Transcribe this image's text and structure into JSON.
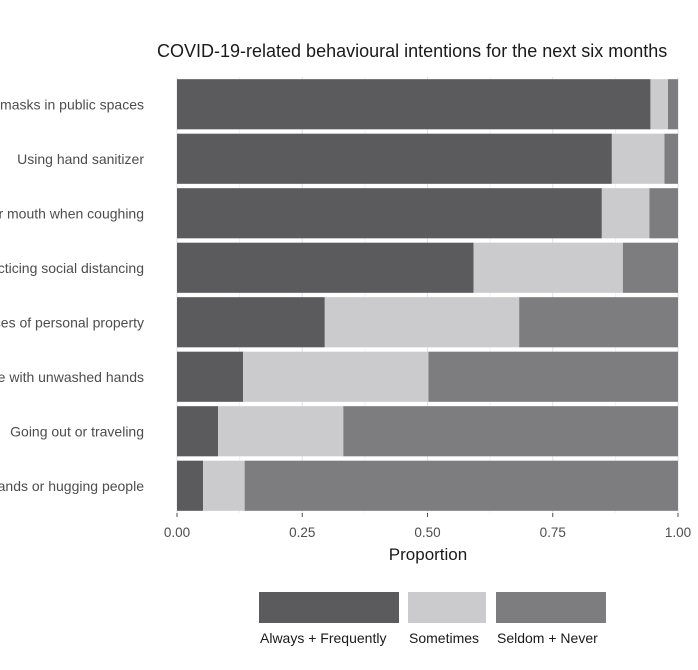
{
  "chart_data": {
    "type": "bar",
    "orientation": "horizontal",
    "stacked": true,
    "title": "COVID-19-related behavioural intentions for the next six months",
    "xlabel": "Proportion",
    "ylabel": "",
    "xlim": [
      0,
      1
    ],
    "x_ticks": [
      "0.00",
      "0.25",
      "0.50",
      "0.75",
      "1.00"
    ],
    "grid": true,
    "legend_position": "bottom",
    "categories": [
      "Wearing face masks in public spaces",
      "Using hand sanitizer",
      "Covering your mouth when coughing",
      "Practicing social distancing",
      "Disinfecting surfaces of personal property",
      "Touching your face with unwashed hands",
      "Going out or traveling",
      "Shaking hands or hugging people"
    ],
    "series": [
      {
        "name": "Always + Frequently",
        "color": "#5b5b5d",
        "values": [
          0.945,
          0.868,
          0.848,
          0.592,
          0.295,
          0.132,
          0.082,
          0.052
        ]
      },
      {
        "name": "Sometimes",
        "color": "#cbcbcd",
        "values": [
          0.035,
          0.105,
          0.095,
          0.298,
          0.388,
          0.37,
          0.25,
          0.083
        ]
      },
      {
        "name": "Seldom + Never",
        "color": "#7d7d80",
        "values": [
          0.02,
          0.027,
          0.057,
          0.11,
          0.317,
          0.498,
          0.668,
          0.865
        ]
      }
    ]
  }
}
